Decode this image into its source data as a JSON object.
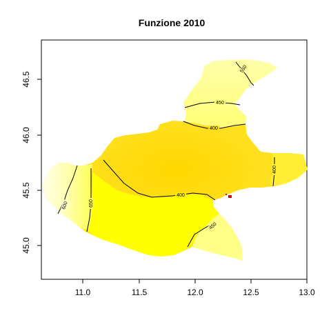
{
  "title": "Funzione 2010",
  "x_ticks": [
    "11.0",
    "11.5",
    "12.0",
    "12.5",
    "13.0"
  ],
  "y_ticks": [
    "45.0",
    "45.5",
    "46.0",
    "46.5"
  ],
  "contour_labels": {
    "north_550": "550",
    "north_450": "450",
    "north_400": "400",
    "east_400": "400",
    "central_400": "400",
    "southeast_450": "450",
    "west_600": "600",
    "west_650": "650"
  },
  "colors": {
    "light_yellow": "#ffff99",
    "mid_yellow": "#ffee44",
    "gold": "#ffd700",
    "bright_yellow": "#ffff00",
    "pale_yellow": "#ffffcc",
    "red_marker": "#dd0000"
  }
}
